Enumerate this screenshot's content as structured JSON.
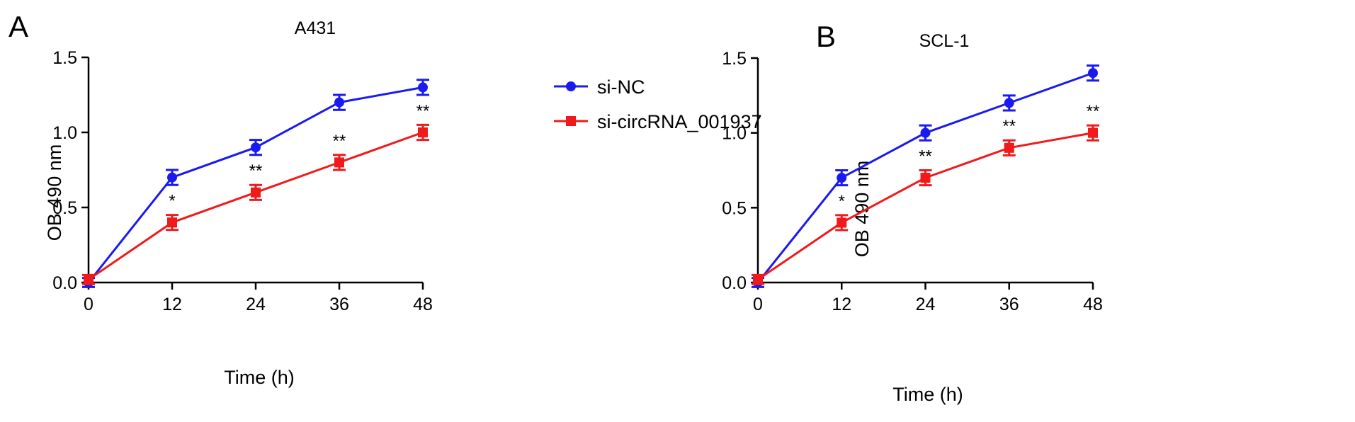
{
  "panels": [
    {
      "letter": "A"
    },
    {
      "letter": "B"
    }
  ],
  "legend": [
    {
      "label": "si-NC",
      "color": "#1a1af0",
      "marker": "circle"
    },
    {
      "label": "si-circRNA_001937",
      "color": "#f01a1a",
      "marker": "square"
    }
  ],
  "chart_data": [
    {
      "type": "line",
      "title": "A431",
      "xlabel": "Time (h)",
      "ylabel": "OB 490 nm",
      "x": [
        0,
        12,
        24,
        36,
        48
      ],
      "xticks": [
        "0",
        "12",
        "24",
        "36",
        "48"
      ],
      "yticks": [
        "0.0",
        "0.5",
        "1.0",
        "1.5"
      ],
      "ylim": [
        0,
        1.5
      ],
      "grid": false,
      "legend_position": "right",
      "series": [
        {
          "name": "si-NC",
          "values": [
            0.0,
            0.7,
            0.9,
            1.2,
            1.3
          ],
          "error": [
            0.03,
            0.05,
            0.05,
            0.05,
            0.05
          ]
        },
        {
          "name": "si-circRNA_001937",
          "values": [
            0.02,
            0.4,
            0.6,
            0.8,
            1.0
          ],
          "error": [
            0.03,
            0.05,
            0.05,
            0.05,
            0.05
          ]
        }
      ],
      "annotations": [
        {
          "x": 12,
          "text": "*"
        },
        {
          "x": 24,
          "text": "**"
        },
        {
          "x": 36,
          "text": "**"
        },
        {
          "x": 48,
          "text": "**"
        }
      ]
    },
    {
      "type": "line",
      "title": "SCL-1",
      "xlabel": "Time (h)",
      "ylabel": "OB 490 nm",
      "x": [
        0,
        12,
        24,
        36,
        48
      ],
      "xticks": [
        "0",
        "12",
        "24",
        "36",
        "48"
      ],
      "yticks": [
        "0.0",
        "0.5",
        "1.0",
        "1.5"
      ],
      "ylim": [
        0,
        1.5
      ],
      "grid": false,
      "series": [
        {
          "name": "si-NC",
          "values": [
            0.0,
            0.7,
            1.0,
            1.2,
            1.4
          ],
          "error": [
            0.03,
            0.05,
            0.05,
            0.05,
            0.05
          ]
        },
        {
          "name": "si-circRNA_001937",
          "values": [
            0.02,
            0.4,
            0.7,
            0.9,
            1.0
          ],
          "error": [
            0.03,
            0.05,
            0.05,
            0.05,
            0.05
          ]
        }
      ],
      "annotations": [
        {
          "x": 12,
          "text": "*"
        },
        {
          "x": 24,
          "text": "**"
        },
        {
          "x": 36,
          "text": "**"
        },
        {
          "x": 48,
          "text": "**"
        }
      ]
    }
  ]
}
